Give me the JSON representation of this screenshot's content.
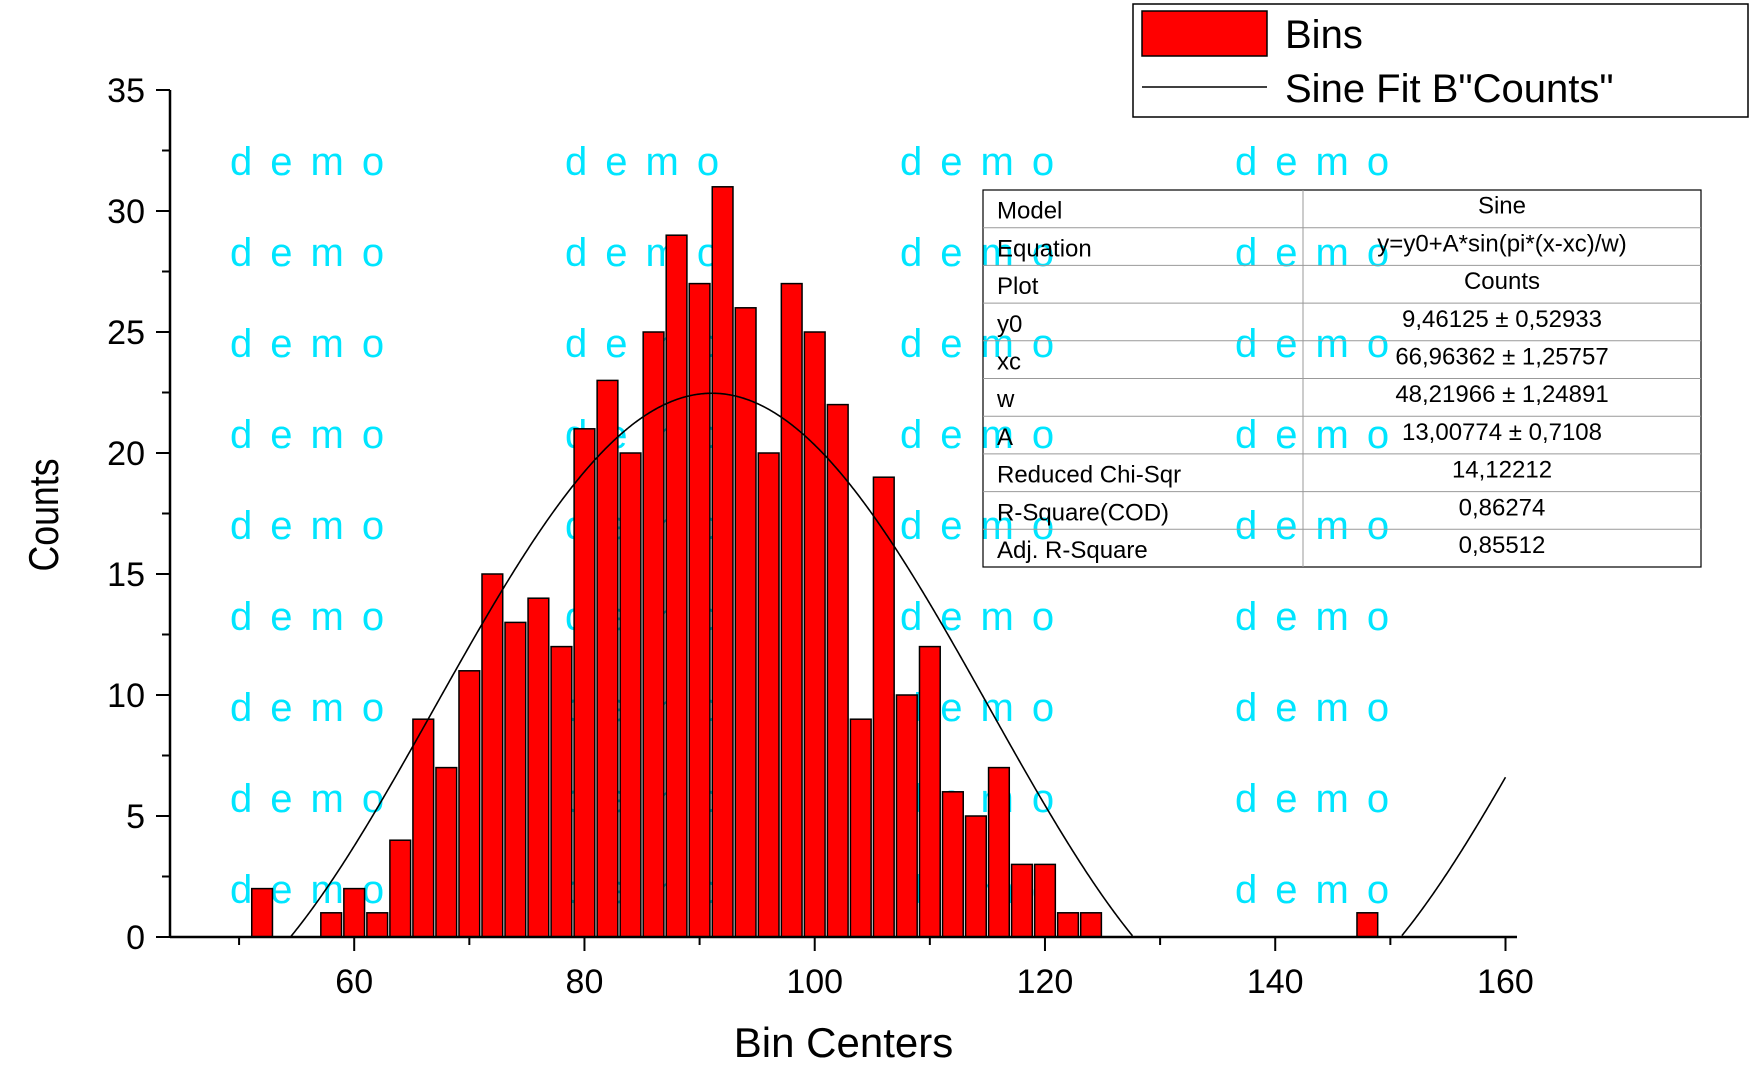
{
  "chart_data": {
    "type": "bar",
    "xlabel": "Bin Centers",
    "ylabel": "Counts",
    "xlim": [
      44,
      161
    ],
    "ylim": [
      0,
      35
    ],
    "xticks": [
      60,
      80,
      100,
      120,
      140,
      160
    ],
    "yticks": [
      0,
      5,
      10,
      15,
      20,
      25,
      30,
      35
    ],
    "grid": false,
    "legend_position": "top-right",
    "bar_width": 1.8,
    "series": [
      {
        "name": "Bins",
        "color": "#ff0000",
        "x": [
          52,
          58,
          60,
          62,
          64,
          66,
          68,
          70,
          72,
          74,
          76,
          78,
          80,
          82,
          84,
          86,
          88,
          90,
          92,
          94,
          96,
          98,
          100,
          102,
          104,
          106,
          108,
          110,
          112,
          114,
          116,
          118,
          120,
          122,
          124,
          148
        ],
        "values": [
          2,
          1,
          2,
          1,
          4,
          9,
          7,
          11,
          15,
          13,
          14,
          12,
          21,
          23,
          20,
          25,
          29,
          27,
          31,
          26,
          20,
          27,
          25,
          22,
          9,
          19,
          10,
          12,
          6,
          5,
          7,
          3,
          3,
          1,
          1,
          1
        ]
      },
      {
        "name": "Sine Fit B\"Counts\"",
        "color": "#000000",
        "type": "line",
        "model": {
          "y0": 9.46125,
          "xc": 66.96362,
          "w": 48.21966,
          "A": 13.00774
        },
        "x_range": [
          44,
          160
        ],
        "clip_min": 0
      }
    ],
    "fit_table": {
      "rows": [
        {
          "label": "Model",
          "value": "Sine"
        },
        {
          "label": "Equation",
          "value": "y=y0+A*sin(pi*(x-xc)/w)"
        },
        {
          "label": "Plot",
          "value": "Counts"
        },
        {
          "label": "y0",
          "value": "9,46125 ± 0,52933"
        },
        {
          "label": "xc",
          "value": "66,96362 ± 1,25757"
        },
        {
          "label": "w",
          "value": "48,21966 ± 1,24891"
        },
        {
          "label": "A",
          "value": "13,00774 ± 0,7108"
        },
        {
          "label": "Reduced Chi-Sqr",
          "value": "14,12212"
        },
        {
          "label": "R-Square(COD)",
          "value": "0,86274"
        },
        {
          "label": "Adj. R-Square",
          "value": "0,85512"
        }
      ]
    },
    "watermark": {
      "text": "demo",
      "color": "#00e5ff"
    }
  }
}
